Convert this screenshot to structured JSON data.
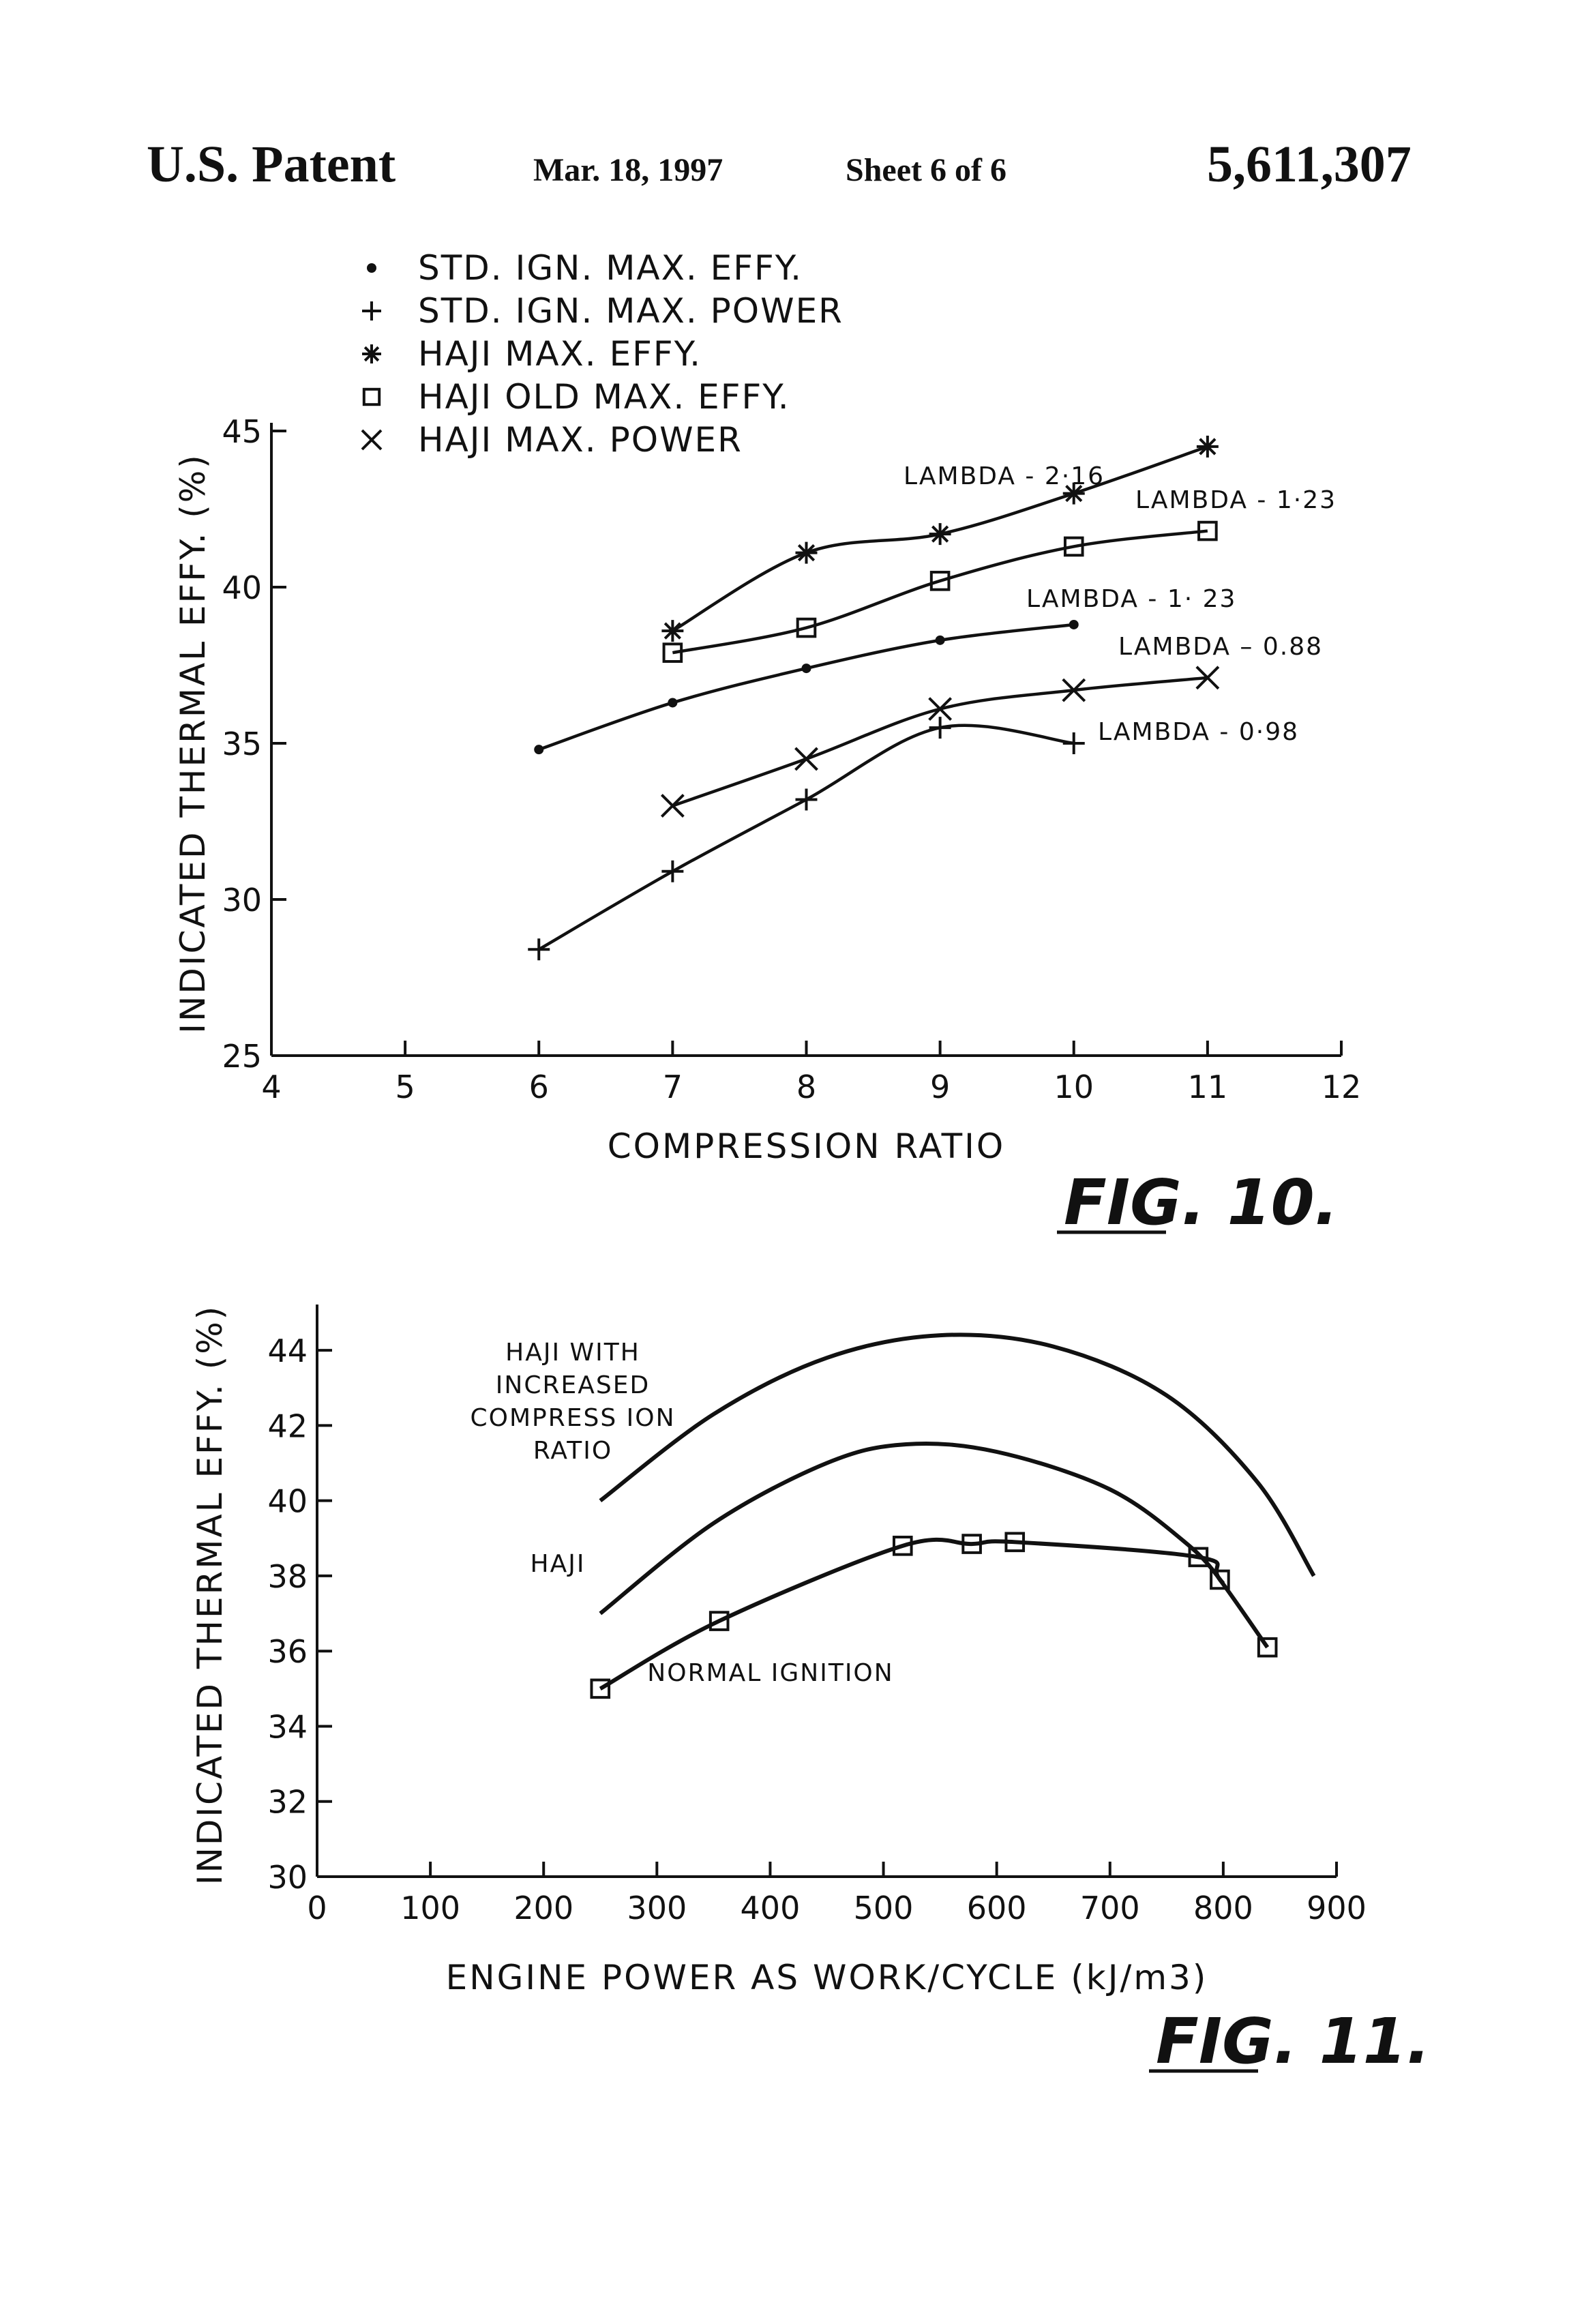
{
  "header": {
    "left": "U.S. Patent",
    "date": "Mar. 18, 1997",
    "sheet": "Sheet 6 of 6",
    "patent_number": "5,611,307"
  },
  "chart_data": [
    {
      "type": "line",
      "figure_label": "FIG. 10.",
      "xlabel": "COMPRESSION RATIO",
      "ylabel": "INDICATED THERMAL EFFY. (%)",
      "xlim": [
        4,
        12
      ],
      "ylim": [
        25,
        45
      ],
      "xticks": [
        4,
        5,
        6,
        7,
        8,
        9,
        10,
        11,
        12
      ],
      "xtick_labels": [
        "4",
        "5",
        "6",
        "7",
        "8",
        "9",
        "10",
        "11",
        "12"
      ],
      "yticks": [
        25,
        30,
        35,
        40,
        45
      ],
      "ytick_labels": [
        "25",
        "30",
        "35",
        "40",
        "45"
      ],
      "grid": false,
      "legend_position": "top-left",
      "legend": [
        {
          "marker": "dot",
          "symbol": "•",
          "label": "STD. IGN. MAX. EFFY."
        },
        {
          "marker": "plus",
          "symbol": "+",
          "label": "STD. IGN. MAX. POWER"
        },
        {
          "marker": "star",
          "symbol": "✳",
          "label": "HAJI MAX. EFFY."
        },
        {
          "marker": "square",
          "symbol": "□",
          "label": "HAJI OLD MAX. EFFY."
        },
        {
          "marker": "x",
          "symbol": "×",
          "label": "HAJI MAX. POWER"
        }
      ],
      "series": [
        {
          "name": "HAJI MAX. EFFY.",
          "marker": "star",
          "annotation": "LAMBDA - 2·16",
          "x": [
            7,
            8,
            9,
            10,
            11
          ],
          "y": [
            38.6,
            41.1,
            41.7,
            43.0,
            44.5
          ]
        },
        {
          "name": "HAJI OLD MAX. EFFY.",
          "marker": "square",
          "annotation": "LAMBDA - 1·23",
          "x": [
            7,
            8,
            9,
            10,
            11
          ],
          "y": [
            37.9,
            38.7,
            40.2,
            41.3,
            41.8
          ]
        },
        {
          "name": "STD. IGN. MAX. EFFY.",
          "marker": "dot",
          "annotation": "LAMBDA - 1· 23",
          "x": [
            6,
            7,
            8,
            9,
            10
          ],
          "y": [
            34.8,
            36.3,
            37.4,
            38.3,
            38.8
          ]
        },
        {
          "name": "HAJI MAX. POWER",
          "marker": "x",
          "annotation": "LAMBDA – 0.88",
          "x": [
            7,
            8,
            9,
            10,
            11
          ],
          "y": [
            33.0,
            34.5,
            36.1,
            36.7,
            37.1
          ]
        },
        {
          "name": "STD. IGN. MAX. POWER",
          "marker": "plus",
          "annotation": "LAMBDA - 0·98",
          "x": [
            6,
            7,
            8,
            9,
            10
          ],
          "y": [
            28.4,
            30.9,
            33.2,
            35.5,
            35.0
          ]
        }
      ]
    },
    {
      "type": "line",
      "figure_label": "FIG. 11.",
      "xlabel": "ENGINE POWER AS WORK/CYCLE (kJ/m3)",
      "ylabel": "INDICATED THERMAL EFFY. (%)",
      "xlim": [
        0,
        900
      ],
      "ylim": [
        30,
        45
      ],
      "xticks": [
        0,
        100,
        200,
        300,
        400,
        500,
        600,
        700,
        800,
        900
      ],
      "xtick_labels": [
        "0",
        "100",
        "200",
        "300",
        "400",
        "500",
        "600",
        "700",
        "800",
        "900"
      ],
      "yticks": [
        30,
        32,
        34,
        36,
        38,
        40,
        42,
        44
      ],
      "ytick_labels": [
        "30",
        "32",
        "34",
        "36",
        "38",
        "40",
        "42",
        "44"
      ],
      "grid": false,
      "series": [
        {
          "name": "HAJI WITH INCREASED COMPRESSION RATIO",
          "marker": "none",
          "label_lines": [
            "HAJI WITH",
            "INCREASED",
            "COMPRESS ION",
            "RATIO"
          ],
          "x": [
            250,
            350,
            450,
            550,
            650,
            750,
            830,
            880
          ],
          "y": [
            40.0,
            42.3,
            43.8,
            44.4,
            44.1,
            42.8,
            40.5,
            38.0
          ]
        },
        {
          "name": "HAJI",
          "marker": "none",
          "label_lines": [
            "HAJI"
          ],
          "x": [
            250,
            350,
            450,
            520,
            600,
            700,
            770,
            800
          ],
          "y": [
            37.0,
            39.4,
            41.0,
            41.5,
            41.3,
            40.3,
            38.8,
            37.8
          ]
        },
        {
          "name": "NORMAL IGNITION",
          "marker": "square",
          "label_lines": [
            "NORMAL IGNITION"
          ],
          "x": [
            250,
            355,
            517,
            578,
            616,
            778,
            797,
            839
          ],
          "y": [
            35.0,
            36.8,
            38.8,
            38.85,
            38.9,
            38.5,
            37.9,
            36.1
          ]
        }
      ]
    }
  ]
}
